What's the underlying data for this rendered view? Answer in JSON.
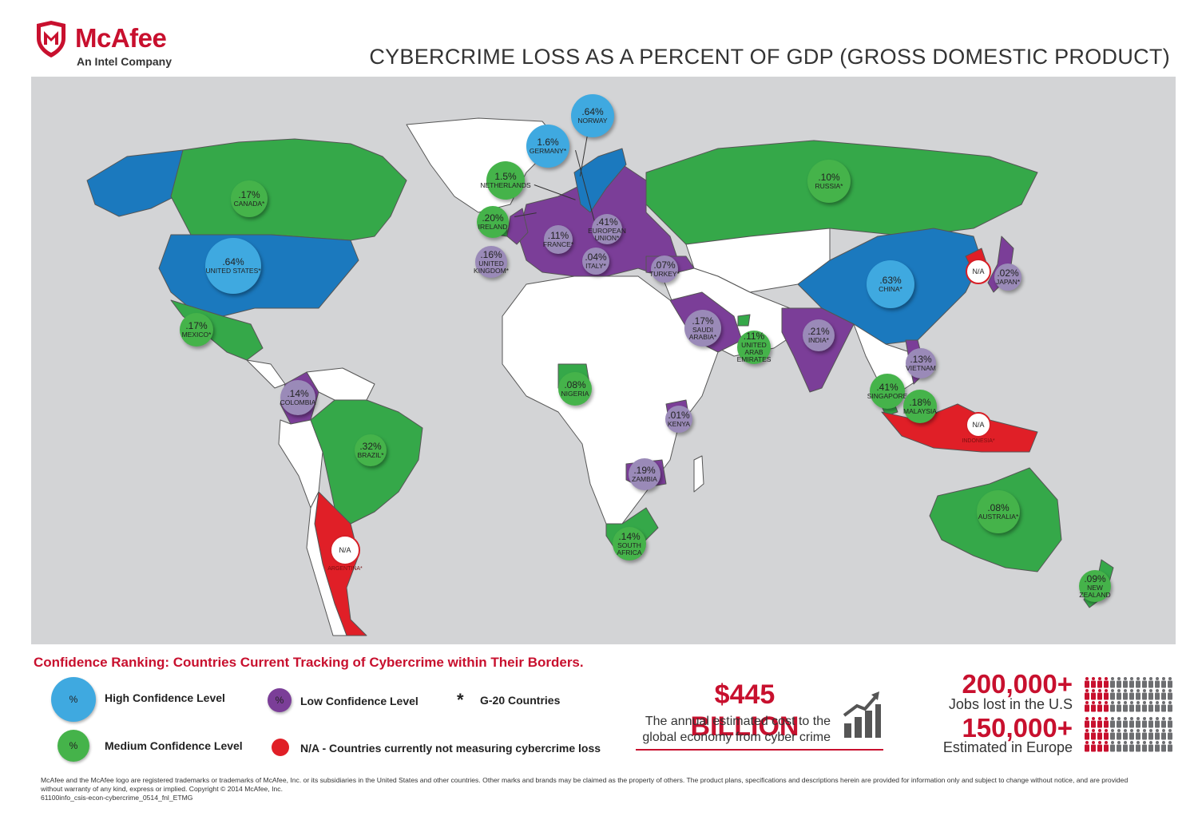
{
  "header": {
    "brand": "McAfee",
    "tagline": "An Intel Company",
    "title": "CYBERCRIME LOSS AS A PERCENT OF GDP (GROSS DOMESTIC PRODUCT)"
  },
  "colors": {
    "high": "#3fa9e0",
    "medium": "#45b34a",
    "low": "#9a8ab8",
    "na": "#d71e26",
    "ocean": "#d3d4d6",
    "brand_red": "#c8102e"
  },
  "markers": [
    {
      "id": "norway",
      "value": ".64%",
      "name": "NORWAY",
      "level": "high"
    },
    {
      "id": "germany",
      "value": "1.6%",
      "name": "GERMANY*",
      "level": "high"
    },
    {
      "id": "netherlands",
      "value": "1.5%",
      "name": "NETHERLANDS",
      "level": "medium"
    },
    {
      "id": "ireland",
      "value": ".20%",
      "name": "IRELAND",
      "level": "medium"
    },
    {
      "id": "uk",
      "value": ".16%",
      "name": "UNITED KINGDOM*",
      "level": "low"
    },
    {
      "id": "france",
      "value": ".11%",
      "name": "FRANCE*",
      "level": "low"
    },
    {
      "id": "eu",
      "value": ".41%",
      "name": "EUROPEAN UNION*",
      "level": "low"
    },
    {
      "id": "italy",
      "value": ".04%",
      "name": "ITALY*",
      "level": "low"
    },
    {
      "id": "turkey",
      "value": ".07%",
      "name": "TURKEY*",
      "level": "low"
    },
    {
      "id": "russia",
      "value": ".10%",
      "name": "RUSSIA*",
      "level": "medium"
    },
    {
      "id": "canada",
      "value": ".17%",
      "name": "CANADA*",
      "level": "medium"
    },
    {
      "id": "usa",
      "value": ".64%",
      "name": "UNITED STATES*",
      "level": "high"
    },
    {
      "id": "mexico",
      "value": ".17%",
      "name": "MEXICO*",
      "level": "medium"
    },
    {
      "id": "colombia",
      "value": ".14%",
      "name": "COLOMBIA",
      "level": "low"
    },
    {
      "id": "brazil",
      "value": ".32%",
      "name": "BRAZIL*",
      "level": "medium"
    },
    {
      "id": "argentina",
      "value": "N/A",
      "name": "ARGENTINA*",
      "level": "na"
    },
    {
      "id": "china",
      "value": ".63%",
      "name": "CHINA*",
      "level": "high"
    },
    {
      "id": "korea",
      "value": "N/A",
      "name": "",
      "level": "na"
    },
    {
      "id": "japan",
      "value": ".02%",
      "name": "JAPAN*",
      "level": "low"
    },
    {
      "id": "saudi",
      "value": ".17%",
      "name": "SAUDI ARABIA*",
      "level": "low"
    },
    {
      "id": "uae",
      "value": ".11%",
      "name": "UNITED ARAB EMIRATES",
      "level": "medium"
    },
    {
      "id": "india",
      "value": ".21%",
      "name": "INDIA*",
      "level": "low"
    },
    {
      "id": "vietnam",
      "value": ".13%",
      "name": "VIETNAM",
      "level": "low"
    },
    {
      "id": "singapore",
      "value": ".41%",
      "name": "SINGAPORE",
      "level": "medium"
    },
    {
      "id": "malaysia",
      "value": ".18%",
      "name": "MALAYSIA",
      "level": "medium"
    },
    {
      "id": "indonesia",
      "value": "N/A",
      "name": "INDONESIA*",
      "level": "na"
    },
    {
      "id": "nigeria",
      "value": ".08%",
      "name": "NIGERIA",
      "level": "medium"
    },
    {
      "id": "kenya",
      "value": ".01%",
      "name": "KENYA",
      "level": "low"
    },
    {
      "id": "zambia",
      "value": ".19%",
      "name": "ZAMBIA",
      "level": "low"
    },
    {
      "id": "southafrica",
      "value": ".14%",
      "name": "SOUTH AFRICA",
      "level": "medium"
    },
    {
      "id": "australia",
      "value": ".08%",
      "name": "AUSTRALIA*",
      "level": "medium"
    },
    {
      "id": "newzealand",
      "value": ".09%",
      "name": "NEW ZEALAND",
      "level": "medium"
    }
  ],
  "legend": {
    "title": "Confidence Ranking: Countries Current Tracking of Cybercrime within Their Borders.",
    "percent_symbol": "%",
    "asterisk": "*",
    "high": "High Confidence Level",
    "medium": "Medium Confidence Level",
    "low": "Low Confidence Level",
    "g20": "G-20 Countries",
    "na": "N/A - Countries currently not measuring cybercrime loss"
  },
  "stats": {
    "cost": "$445 BILLION",
    "cost_line1": "The annual estimated cost to the",
    "cost_line2": "global economy from cyber crime",
    "jobs_us_num": "200,000+",
    "jobs_us_txt": "Jobs lost in the U.S",
    "jobs_eu_num": "150,000+",
    "jobs_eu_txt": "Estimated in Europe",
    "jobs_us_ratio": 0.25,
    "jobs_eu_ratio": 0.25
  },
  "footer": {
    "line1": "McAfee and the McAfee logo are registered trademarks or trademarks of McAfee, Inc. or its subsidiaries in the United States and other countries. Other marks and brands may be claimed as the property of others. The product plans, specifications and descriptions herein are provided for information only and subject to change without notice, and are provided",
    "line2": "without warranty of any kind, express or implied. Copyright © 2014 McAfee, Inc.",
    "line3": "61100info_csis-econ-cybercrime_0514_fnl_ETMG"
  }
}
